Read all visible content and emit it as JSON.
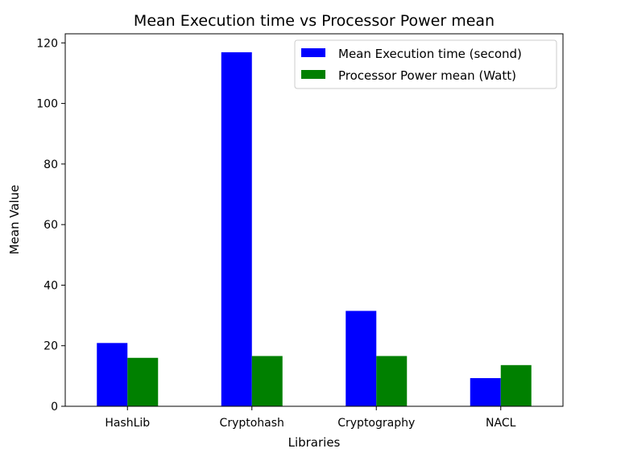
{
  "chart_data": {
    "type": "bar",
    "title": "Mean Execution time vs Processor Power mean",
    "xlabel": "Libraries",
    "ylabel": "Mean Value",
    "categories": [
      "HashLib",
      "Cryptohash",
      "Cryptography",
      "NACL"
    ],
    "series": [
      {
        "name": "Mean Execution time (second)",
        "color": "#0000ff",
        "values": [
          20.9,
          116.9,
          31.5,
          9.3
        ]
      },
      {
        "name": "Processor Power mean (Watt)",
        "color": "#008000",
        "values": [
          16.0,
          16.6,
          16.6,
          13.6
        ]
      }
    ],
    "ylim": [
      0,
      123
    ],
    "yticks": [
      0,
      20,
      40,
      60,
      80,
      100,
      120
    ],
    "legend_position": "top-right",
    "grid": false
  }
}
